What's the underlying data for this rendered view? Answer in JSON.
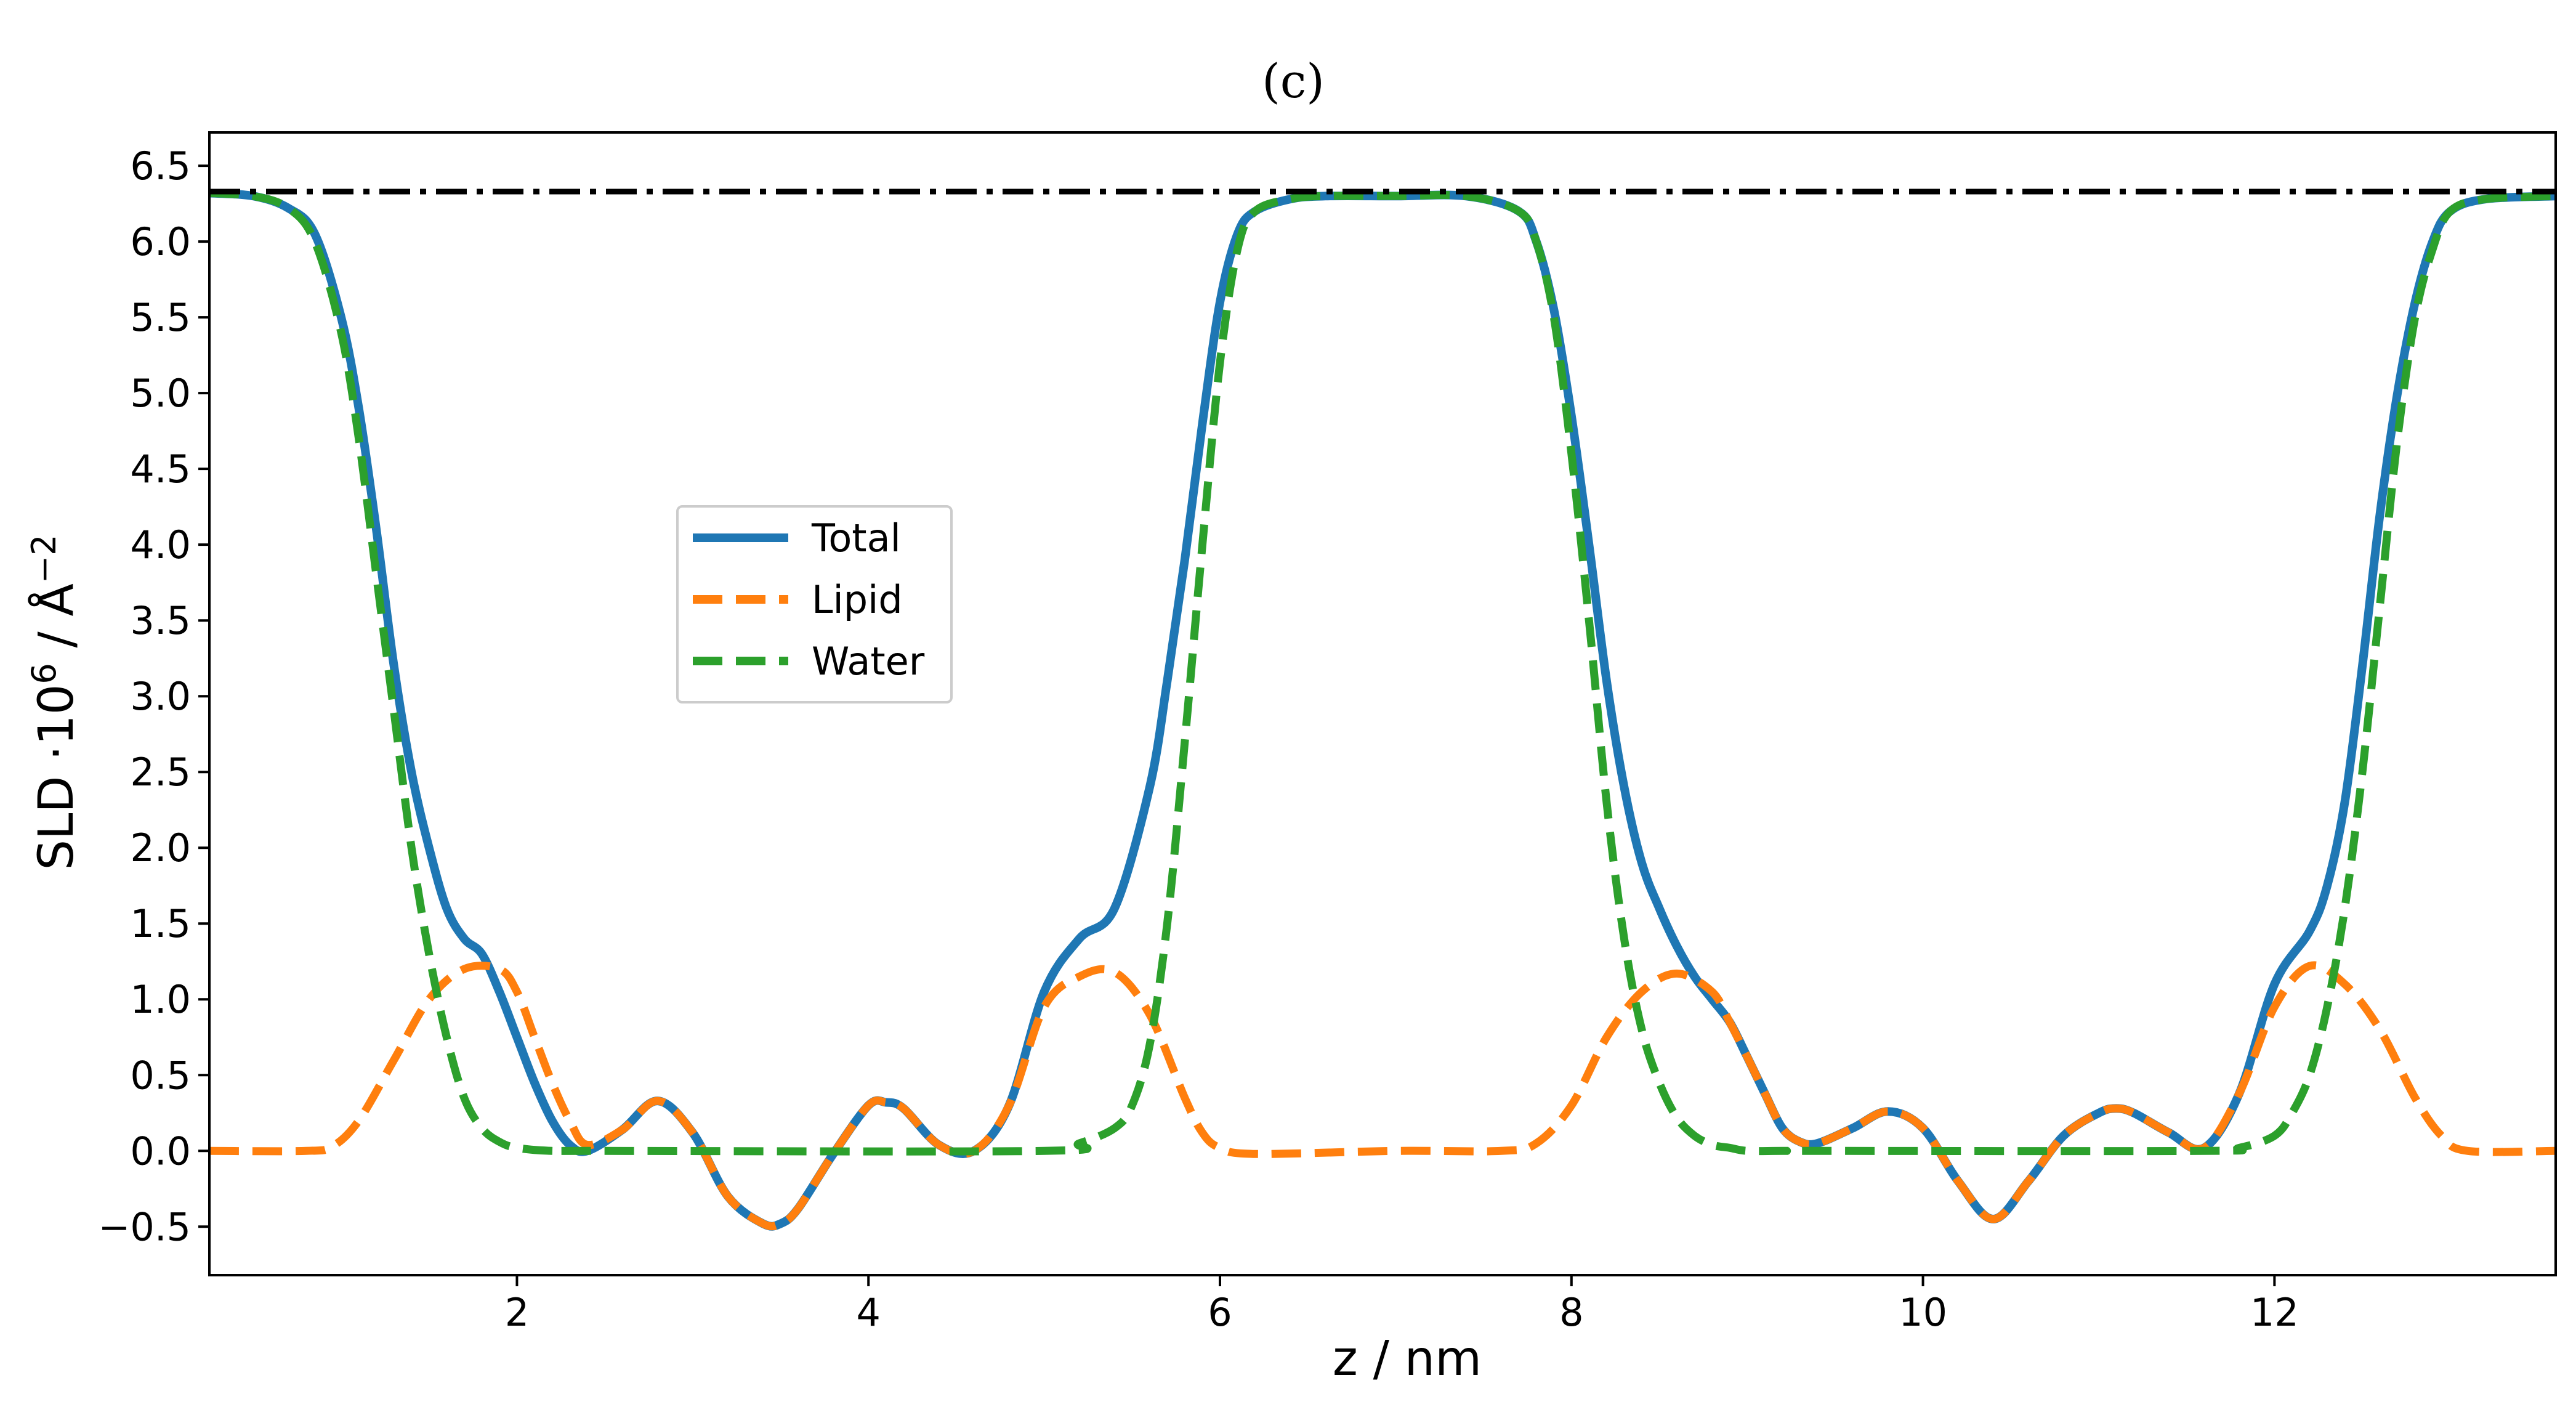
{
  "chart_data": {
    "type": "line",
    "title": "(c)",
    "xlabel": "z / nm",
    "ylabel_main": "SLD ·10",
    "ylabel_exp": "6",
    "ylabel_tail": " / Å",
    "ylabel_exp2": "−2",
    "xlim": [
      0.25,
      13.6
    ],
    "ylim": [
      -0.82,
      6.72
    ],
    "x_ticks": [
      2,
      4,
      6,
      8,
      10,
      12
    ],
    "x_tick_labels": [
      "2",
      "4",
      "6",
      "8",
      "10",
      "12"
    ],
    "y_ticks": [
      -0.5,
      0.0,
      0.5,
      1.0,
      1.5,
      2.0,
      2.5,
      3.0,
      3.5,
      4.0,
      4.5,
      5.0,
      5.5,
      6.0,
      6.5
    ],
    "y_tick_labels": [
      "−0.5",
      "0.0",
      "0.5",
      "1.0",
      "1.5",
      "2.0",
      "2.5",
      "3.0",
      "3.5",
      "4.0",
      "4.5",
      "5.0",
      "5.5",
      "6.0",
      "6.5"
    ],
    "grid": false,
    "legend_position": "center-left",
    "reference_line": {
      "y": 6.33,
      "style": "dash-dot",
      "color": "#000000"
    },
    "series": [
      {
        "name": "Total",
        "color": "#1f77b4",
        "style": "solid",
        "x": [
          0.25,
          0.5,
          0.7,
          0.85,
          1.0,
          1.1,
          1.2,
          1.3,
          1.4,
          1.5,
          1.6,
          1.7,
          1.8,
          1.9,
          2.0,
          2.1,
          2.2,
          2.3,
          2.4,
          2.6,
          2.8,
          3.0,
          3.2,
          3.4,
          3.5,
          3.6,
          3.8,
          4.0,
          4.1,
          4.2,
          4.4,
          4.6,
          4.8,
          5.0,
          5.2,
          5.4,
          5.6,
          5.7,
          5.8,
          5.9,
          6.0,
          6.1,
          6.2,
          6.4,
          6.6,
          7.0,
          7.4,
          7.7,
          7.8,
          7.9,
          8.0,
          8.1,
          8.2,
          8.3,
          8.4,
          8.5,
          8.6,
          8.7,
          8.8,
          8.9,
          9.0,
          9.1,
          9.2,
          9.3,
          9.4,
          9.6,
          9.8,
          10.0,
          10.2,
          10.4,
          10.6,
          10.8,
          11.0,
          11.1,
          11.2,
          11.4,
          11.6,
          11.8,
          12.0,
          12.2,
          12.3,
          12.4,
          12.5,
          12.6,
          12.7,
          12.8,
          12.9,
          13.0,
          13.2,
          13.6
        ],
        "y": [
          6.32,
          6.3,
          6.22,
          6.05,
          5.5,
          4.9,
          4.1,
          3.2,
          2.5,
          2.0,
          1.6,
          1.4,
          1.3,
          1.05,
          0.75,
          0.45,
          0.2,
          0.04,
          0.0,
          0.14,
          0.33,
          0.12,
          -0.3,
          -0.48,
          -0.48,
          -0.38,
          -0.02,
          0.3,
          0.32,
          0.28,
          0.04,
          0.0,
          0.3,
          1.05,
          1.4,
          1.6,
          2.4,
          3.1,
          3.9,
          4.8,
          5.6,
          6.05,
          6.2,
          6.28,
          6.3,
          6.3,
          6.3,
          6.2,
          6.0,
          5.55,
          4.85,
          4.0,
          3.1,
          2.4,
          1.9,
          1.6,
          1.35,
          1.15,
          1.0,
          0.85,
          0.62,
          0.38,
          0.15,
          0.06,
          0.05,
          0.15,
          0.26,
          0.15,
          -0.2,
          -0.45,
          -0.2,
          0.1,
          0.25,
          0.28,
          0.25,
          0.12,
          0.02,
          0.38,
          1.1,
          1.45,
          1.75,
          2.3,
          3.2,
          4.2,
          5.0,
          5.6,
          6.0,
          6.2,
          6.28,
          6.3
        ]
      },
      {
        "name": "Lipid",
        "color": "#ff7f0e",
        "style": "dashed",
        "x": [
          0.25,
          0.8,
          0.95,
          1.1,
          1.3,
          1.5,
          1.7,
          1.9,
          2.0,
          2.1,
          2.2,
          2.3,
          2.4,
          2.6,
          2.8,
          3.0,
          3.2,
          3.4,
          3.5,
          3.6,
          3.8,
          4.0,
          4.1,
          4.2,
          4.4,
          4.6,
          4.8,
          5.0,
          5.2,
          5.4,
          5.6,
          5.8,
          5.9,
          6.0,
          6.2,
          7.0,
          7.6,
          7.8,
          8.0,
          8.2,
          8.4,
          8.6,
          8.8,
          8.9,
          9.0,
          9.1,
          9.2,
          9.3,
          9.4,
          9.6,
          9.8,
          10.0,
          10.2,
          10.4,
          10.6,
          10.8,
          11.0,
          11.1,
          11.2,
          11.4,
          11.6,
          11.8,
          12.0,
          12.2,
          12.4,
          12.6,
          12.8,
          12.95,
          13.1,
          13.6
        ],
        "y": [
          0.0,
          0.0,
          0.03,
          0.2,
          0.6,
          1.0,
          1.2,
          1.2,
          1.05,
          0.75,
          0.45,
          0.2,
          0.04,
          0.14,
          0.33,
          0.12,
          -0.3,
          -0.48,
          -0.48,
          -0.38,
          -0.02,
          0.3,
          0.32,
          0.28,
          0.04,
          0.0,
          0.3,
          0.95,
          1.15,
          1.18,
          0.9,
          0.35,
          0.12,
          0.02,
          -0.02,
          0.0,
          0.0,
          0.05,
          0.3,
          0.75,
          1.05,
          1.17,
          1.05,
          0.85,
          0.62,
          0.38,
          0.15,
          0.06,
          0.05,
          0.15,
          0.26,
          0.15,
          -0.2,
          -0.45,
          -0.2,
          0.1,
          0.25,
          0.28,
          0.25,
          0.12,
          0.02,
          0.38,
          0.95,
          1.22,
          1.1,
          0.8,
          0.35,
          0.1,
          0.0,
          0.0
        ]
      },
      {
        "name": "Water",
        "color": "#2ca02c",
        "style": "dashed",
        "x": [
          0.25,
          0.5,
          0.7,
          0.85,
          1.0,
          1.1,
          1.2,
          1.3,
          1.4,
          1.5,
          1.6,
          1.7,
          1.8,
          1.9,
          2.0,
          2.2,
          2.5,
          5.0,
          5.2,
          5.4,
          5.5,
          5.6,
          5.7,
          5.8,
          5.9,
          6.0,
          6.1,
          6.2,
          6.4,
          6.6,
          7.0,
          7.4,
          7.7,
          7.8,
          7.9,
          8.0,
          8.1,
          8.2,
          8.3,
          8.4,
          8.5,
          8.6,
          8.7,
          8.8,
          8.9,
          9.0,
          9.2,
          9.5,
          11.6,
          11.8,
          12.0,
          12.1,
          12.2,
          12.3,
          12.4,
          12.5,
          12.6,
          12.7,
          12.8,
          12.9,
          13.0,
          13.2,
          13.6
        ],
        "y": [
          6.32,
          6.3,
          6.22,
          6.0,
          5.4,
          4.7,
          3.8,
          2.9,
          2.0,
          1.3,
          0.75,
          0.35,
          0.15,
          0.06,
          0.02,
          0.0,
          0.0,
          0.0,
          0.05,
          0.15,
          0.3,
          0.7,
          1.5,
          2.7,
          4.0,
          5.2,
          5.95,
          6.2,
          6.28,
          6.3,
          6.3,
          6.3,
          6.2,
          6.0,
          5.5,
          4.6,
          3.5,
          2.3,
          1.4,
          0.8,
          0.45,
          0.22,
          0.1,
          0.04,
          0.02,
          0.0,
          0.0,
          0.0,
          0.0,
          0.02,
          0.1,
          0.25,
          0.5,
          0.95,
          1.6,
          2.5,
          3.6,
          4.7,
          5.5,
          5.95,
          6.2,
          6.28,
          6.3
        ]
      }
    ]
  }
}
